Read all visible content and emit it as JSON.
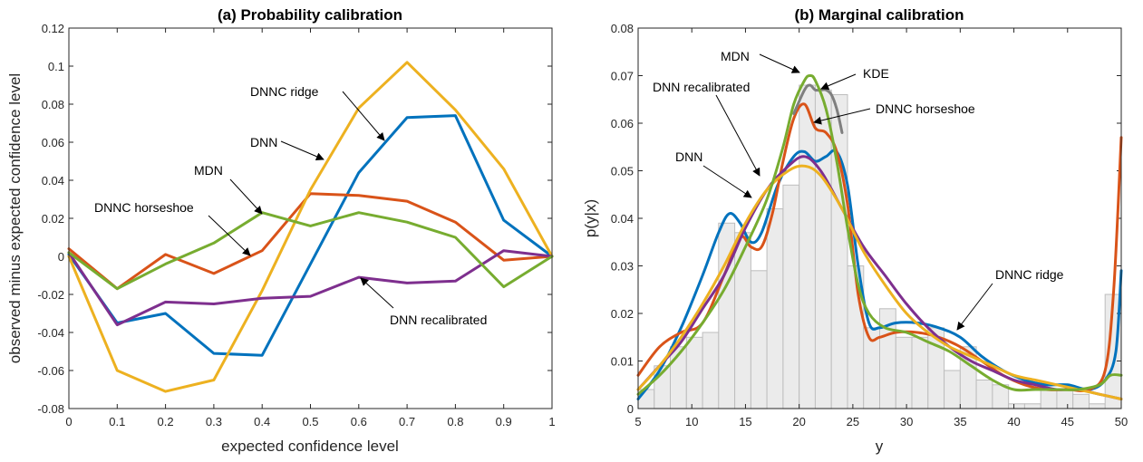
{
  "chart_data": [
    {
      "type": "line",
      "title": "(a) Probability calibration",
      "xlabel": "expected confidence level",
      "ylabel": "observed minus expected confidence level",
      "xlim": [
        0,
        1
      ],
      "ylim": [
        -0.08,
        0.12
      ],
      "xticks": [
        0,
        0.1,
        0.2,
        0.3,
        0.4,
        0.5,
        0.6,
        0.7,
        0.8,
        0.9,
        1
      ],
      "yticks": [
        -0.08,
        -0.06,
        -0.04,
        -0.02,
        0,
        0.02,
        0.04,
        0.06,
        0.08,
        0.1,
        0.12
      ],
      "xtick_labels": [
        "0",
        "0.1",
        "0.2",
        "0.3",
        "0.4",
        "0.5",
        "0.6",
        "0.7",
        "0.8",
        "0.9",
        "1"
      ],
      "ytick_labels": [
        "-0.08",
        "-0.06",
        "-0.04",
        "-0.02",
        "0",
        "0.02",
        "0.04",
        "0.06",
        "0.08",
        "0.1",
        "0.12"
      ],
      "x": [
        0,
        0.1,
        0.2,
        0.3,
        0.4,
        0.5,
        0.6,
        0.7,
        0.8,
        0.9,
        1
      ],
      "series": [
        {
          "name": "DNN",
          "color": "#0072bd",
          "values": [
            0.001,
            -0.035,
            -0.03,
            -0.051,
            -0.052,
            -0.004,
            0.044,
            0.073,
            0.074,
            0.019,
            0.0
          ]
        },
        {
          "name": "MDN",
          "color": "#d95319",
          "values": [
            0.004,
            -0.017,
            0.001,
            -0.009,
            0.003,
            0.033,
            0.032,
            0.029,
            0.018,
            -0.002,
            0.0
          ]
        },
        {
          "name": "DNNC ridge",
          "color": "#edb120",
          "values": [
            0.0,
            -0.06,
            -0.071,
            -0.065,
            -0.018,
            0.035,
            0.078,
            0.102,
            0.077,
            0.046,
            0.0
          ]
        },
        {
          "name": "DNN recalibrated",
          "color": "#7e2f8e",
          "values": [
            0.002,
            -0.036,
            -0.024,
            -0.025,
            -0.022,
            -0.021,
            -0.011,
            -0.014,
            -0.013,
            0.003,
            0.0
          ]
        },
        {
          "name": "DNNC horseshoe",
          "color": "#77ac30",
          "values": [
            0.002,
            -0.017,
            -0.004,
            0.007,
            0.023,
            0.016,
            0.023,
            0.018,
            0.01,
            -0.016,
            0.0
          ]
        }
      ],
      "annotations": [
        {
          "text": "DNNC ridge",
          "target": "DNNC ridge"
        },
        {
          "text": "DNN",
          "target": "DNN"
        },
        {
          "text": "MDN",
          "target": "MDN"
        },
        {
          "text": "DNNC horseshoe",
          "target": "DNNC horseshoe"
        },
        {
          "text": "DNN recalibrated",
          "target": "DNN recalibrated"
        }
      ]
    },
    {
      "type": "line",
      "title": "(b) Marginal calibration",
      "xlabel": "y",
      "ylabel": "p(y|x)",
      "xlim": [
        5,
        50
      ],
      "ylim": [
        0,
        0.08
      ],
      "xticks": [
        5,
        10,
        15,
        20,
        25,
        30,
        35,
        40,
        45,
        50
      ],
      "yticks": [
        0,
        0.01,
        0.02,
        0.03,
        0.04,
        0.05,
        0.06,
        0.07,
        0.08
      ],
      "xtick_labels": [
        "5",
        "10",
        "15",
        "20",
        "25",
        "30",
        "35",
        "40",
        "45",
        "50"
      ],
      "ytick_labels": [
        "0",
        "0.01",
        "0.02",
        "0.03",
        "0.04",
        "0.05",
        "0.06",
        "0.07",
        "0.08"
      ],
      "histogram": {
        "bin_edges": [
          5,
          6.5,
          8,
          9.5,
          11,
          12.5,
          14,
          15.5,
          17,
          18.5,
          20,
          21.5,
          23,
          24.5,
          26,
          27.5,
          29,
          30.5,
          32,
          33.5,
          35,
          36.5,
          38,
          39.5,
          41,
          42.5,
          44,
          45.5,
          47,
          48.5,
          50
        ],
        "values": [
          0.004,
          0.009,
          0.013,
          0.015,
          0.016,
          0.039,
          0.037,
          0.029,
          0.042,
          0.047,
          0.068,
          0.067,
          0.066,
          0.03,
          0.017,
          0.021,
          0.015,
          0.015,
          0.017,
          0.008,
          0.013,
          0.006,
          0.005,
          0.001,
          0.001,
          0.004,
          0.004,
          0.003,
          0.001,
          0.024
        ]
      },
      "series": [
        {
          "name": "DNN",
          "color": "#0072bd",
          "x": [
            5,
            7,
            9,
            11,
            12.5,
            13.5,
            14.5,
            15.5,
            16.5,
            18,
            19.5,
            20.5,
            21.5,
            22.5,
            23.5,
            24.5,
            25.5,
            26.5,
            27.5,
            29,
            31,
            33,
            35,
            37,
            39,
            41,
            43,
            45,
            47,
            48.5,
            49.5,
            50
          ],
          "y": [
            0.002,
            0.008,
            0.017,
            0.028,
            0.037,
            0.041,
            0.039,
            0.035,
            0.037,
            0.047,
            0.053,
            0.054,
            0.052,
            0.053,
            0.054,
            0.047,
            0.03,
            0.018,
            0.017,
            0.018,
            0.018,
            0.017,
            0.015,
            0.011,
            0.008,
            0.006,
            0.005,
            0.005,
            0.004,
            0.006,
            0.012,
            0.029
          ]
        },
        {
          "name": "MDN",
          "color": "#d95319",
          "x": [
            5,
            7,
            9,
            11,
            13,
            14.5,
            15.5,
            16.5,
            17.5,
            18.5,
            19.5,
            20.5,
            21.5,
            22.5,
            23.5,
            24.5,
            25.5,
            26.5,
            27.5,
            29,
            31,
            33,
            35,
            37,
            39,
            41,
            43,
            45,
            47,
            48.5,
            49.3,
            50
          ],
          "y": [
            0.007,
            0.013,
            0.016,
            0.018,
            0.028,
            0.036,
            0.034,
            0.034,
            0.041,
            0.052,
            0.061,
            0.064,
            0.059,
            0.058,
            0.054,
            0.043,
            0.024,
            0.015,
            0.015,
            0.016,
            0.016,
            0.015,
            0.013,
            0.01,
            0.007,
            0.005,
            0.004,
            0.004,
            0.004,
            0.008,
            0.025,
            0.057
          ]
        },
        {
          "name": "KDE",
          "color": "#7f7f7f",
          "x": [
            19.5,
            20.5,
            21,
            21.5,
            22,
            22.5,
            23,
            23.5,
            24
          ],
          "y": [
            0.062,
            0.067,
            0.068,
            0.067,
            0.067,
            0.067,
            0.066,
            0.063,
            0.058
          ]
        },
        {
          "name": "DNN recalibrated",
          "color": "#7e2f8e",
          "x": [
            5,
            7,
            9,
            11,
            13,
            15,
            17,
            19,
            20.5,
            22,
            24,
            26,
            28,
            30,
            32,
            34,
            36,
            38,
            40,
            42,
            44,
            46,
            48,
            50
          ],
          "y": [
            0.004,
            0.009,
            0.014,
            0.021,
            0.028,
            0.038,
            0.046,
            0.051,
            0.053,
            0.05,
            0.042,
            0.034,
            0.028,
            0.022,
            0.017,
            0.013,
            0.01,
            0.008,
            0.006,
            0.005,
            0.004,
            0.004,
            0.003,
            0.002
          ]
        },
        {
          "name": "DNNC ridge",
          "color": "#edb120",
          "x": [
            5,
            7,
            9,
            11,
            13,
            15,
            17,
            19,
            20.5,
            22,
            24,
            26,
            28,
            30,
            32,
            34,
            36,
            38,
            40,
            42,
            44,
            46,
            48,
            50
          ],
          "y": [
            0.004,
            0.009,
            0.015,
            0.022,
            0.03,
            0.039,
            0.046,
            0.05,
            0.051,
            0.049,
            0.042,
            0.033,
            0.026,
            0.02,
            0.016,
            0.013,
            0.011,
            0.009,
            0.007,
            0.006,
            0.005,
            0.004,
            0.003,
            0.002
          ]
        },
        {
          "name": "DNNC horseshoe",
          "color": "#77ac30",
          "x": [
            5,
            7,
            9,
            11,
            13,
            15,
            17,
            18.5,
            19.5,
            20.5,
            21,
            21.5,
            22.5,
            23.5,
            24.5,
            25.5,
            26.5,
            28,
            30,
            32,
            34,
            36,
            38,
            40,
            42,
            44,
            46,
            48,
            49,
            50
          ],
          "y": [
            0.003,
            0.007,
            0.012,
            0.018,
            0.025,
            0.034,
            0.044,
            0.055,
            0.064,
            0.069,
            0.07,
            0.069,
            0.063,
            0.052,
            0.038,
            0.026,
            0.02,
            0.017,
            0.016,
            0.014,
            0.012,
            0.009,
            0.006,
            0.004,
            0.004,
            0.004,
            0.004,
            0.005,
            0.007,
            0.007
          ]
        }
      ],
      "annotations": [
        {
          "text": "MDN",
          "target": "MDN"
        },
        {
          "text": "KDE",
          "target": "KDE"
        },
        {
          "text": "DNN recalibrated",
          "target": "DNN recalibrated"
        },
        {
          "text": "DNNC horseshoe",
          "target": "DNNC horseshoe"
        },
        {
          "text": "DNN",
          "target": "DNN"
        },
        {
          "text": "DNNC ridge",
          "target": "DNNC ridge"
        }
      ]
    }
  ]
}
